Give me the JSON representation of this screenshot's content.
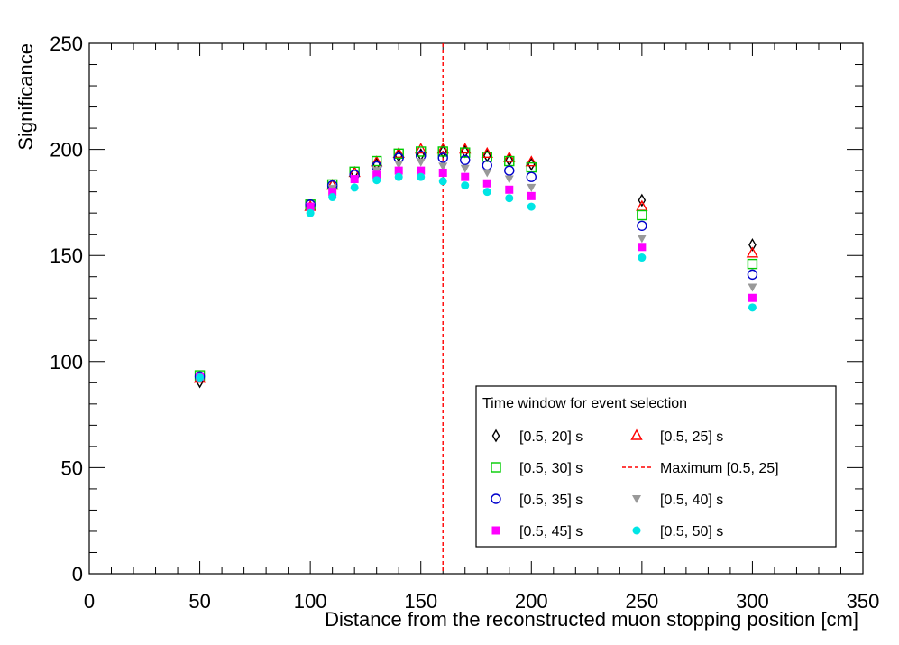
{
  "chart_data": {
    "type": "scatter",
    "title": "",
    "xlabel": "Distance from the reconstructed muon stopping position [cm]",
    "ylabel": "Significance",
    "xlim": [
      0,
      350
    ],
    "ylim": [
      0,
      250
    ],
    "x_ticks": [
      "0",
      "50",
      "100",
      "150",
      "200",
      "250",
      "300",
      "350"
    ],
    "y_ticks": [
      "0",
      "50",
      "100",
      "150",
      "200",
      "250"
    ],
    "legend_title": "Time window for event selection",
    "legend_position": "bottom-right",
    "x": [
      50,
      100,
      110,
      120,
      130,
      140,
      150,
      160,
      170,
      180,
      190,
      200,
      250,
      300
    ],
    "series": [
      {
        "name": "[0.5, 20] s",
        "marker": "open-diamond",
        "color": "#000000",
        "values": [
          90.5,
          172,
          183,
          189,
          193,
          197,
          197.5,
          199,
          199,
          197,
          195,
          193,
          176,
          155
        ]
      },
      {
        "name": "[0.5, 25] s",
        "marker": "open-triangle",
        "color": "#ff0000",
        "values": [
          92,
          173,
          183,
          189,
          194,
          198,
          200,
          200,
          200,
          198,
          196,
          194,
          173,
          151
        ]
      },
      {
        "name": "[0.5, 30] s",
        "marker": "open-square",
        "color": "#00cc00",
        "values": [
          93.5,
          174,
          183.5,
          189.5,
          194.5,
          198,
          199,
          199,
          198.5,
          196.5,
          194.5,
          191.5,
          169,
          146
        ]
      },
      {
        "name": "[0.5, 35] s",
        "marker": "open-circle",
        "color": "#0000cc",
        "values": [
          93,
          174,
          183,
          188,
          192,
          196,
          197,
          196,
          195,
          192.5,
          190,
          187,
          164,
          141
        ]
      },
      {
        "name": "[0.5, 40] s",
        "marker": "filled-triangle-down",
        "color": "#999999",
        "values": [
          93,
          173,
          181.5,
          186,
          190,
          193,
          194,
          192,
          191,
          189,
          186,
          182,
          158,
          135
        ]
      },
      {
        "name": "[0.5, 45] s",
        "marker": "filled-square",
        "color": "#ff00ff",
        "values": [
          93,
          173,
          180,
          186,
          188,
          190,
          190,
          189,
          187,
          184,
          181,
          178,
          154,
          130
        ]
      },
      {
        "name": "[0.5, 50] s",
        "marker": "filled-circle",
        "color": "#00e5e5",
        "values": [
          92.5,
          170,
          177.5,
          182,
          185.5,
          187,
          187,
          185,
          183,
          180,
          177,
          173,
          149,
          125.5
        ]
      }
    ],
    "vertical_lines": [
      {
        "name": "Maximum [0.5, 25]",
        "x": 160,
        "style": "dashed",
        "color": "#ff0000"
      }
    ],
    "legend_order": [
      "[0.5, 20] s",
      "[0.5, 25] s",
      "[0.5, 30] s",
      "Maximum [0.5, 25]",
      "[0.5, 35] s",
      "[0.5, 40] s",
      "[0.5, 45] s",
      "[0.5, 50] s"
    ]
  }
}
